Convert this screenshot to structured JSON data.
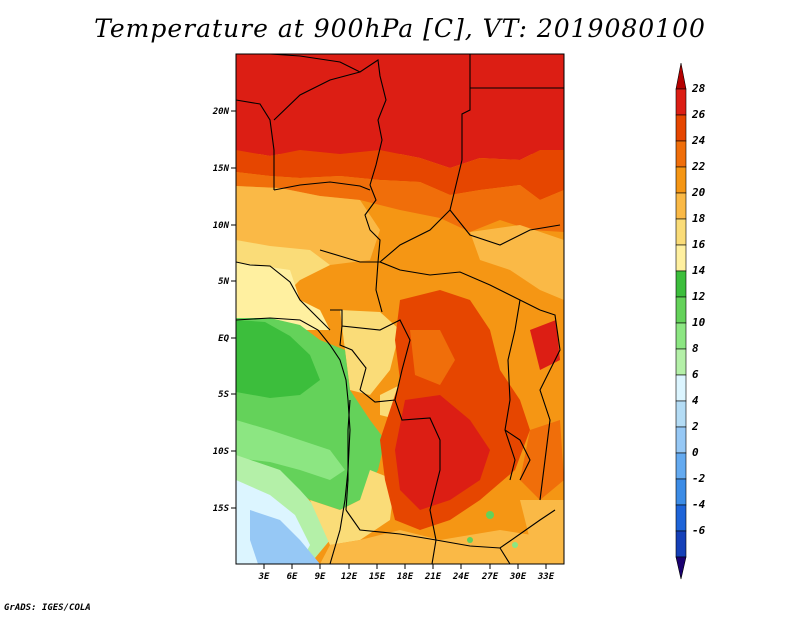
{
  "title": "Temperature at 900hPa [C], VT: 2019080100",
  "footer": "GrADS: IGES/COLA",
  "map": {
    "lat_labels": [
      "20N",
      "15N",
      "10N",
      "5N",
      "EQ",
      "5S",
      "10S",
      "15S"
    ],
    "lon_labels": [
      "3E",
      "6E",
      "9E",
      "12E",
      "15E",
      "18E",
      "21E",
      "24E",
      "27E",
      "30E",
      "33E"
    ]
  },
  "colorbar": {
    "labels": [
      "28",
      "26",
      "24",
      "22",
      "20",
      "18",
      "16",
      "14",
      "12",
      "10",
      "8",
      "6",
      "4",
      "2",
      "0",
      "-2",
      "-4",
      "-6"
    ],
    "colors": [
      "#1a0070",
      "#1540b8",
      "#1e64d8",
      "#3c8ce6",
      "#64aaf0",
      "#96c8f5",
      "#b4dcf5",
      "#dcf5ff",
      "#b4f0a8",
      "#8ce682",
      "#64d25a",
      "#3cbe3c",
      "#fff0a0",
      "#fadc78",
      "#fab946",
      "#f59614",
      "#f06e0a",
      "#e64600",
      "#dc1e14",
      "#b40000"
    ]
  }
}
